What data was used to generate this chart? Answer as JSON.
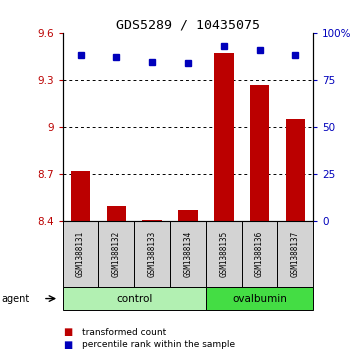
{
  "title": "GDS5289 / 10435075",
  "samples": [
    "GSM1388131",
    "GSM1388132",
    "GSM1388133",
    "GSM1388134",
    "GSM1388135",
    "GSM1388136",
    "GSM1388137"
  ],
  "bar_values": [
    8.72,
    8.5,
    8.41,
    8.47,
    9.47,
    9.27,
    9.05
  ],
  "dot_values": [
    88,
    87,
    84.5,
    84,
    93,
    91,
    88
  ],
  "ylim_left": [
    8.4,
    9.6
  ],
  "ylim_right": [
    0,
    100
  ],
  "yticks_left": [
    8.4,
    8.7,
    9.0,
    9.3,
    9.6
  ],
  "ytick_labels_left": [
    "8.4",
    "8.7",
    "9",
    "9.3",
    "9.6"
  ],
  "yticks_right": [
    0,
    25,
    50,
    75,
    100
  ],
  "ytick_labels_right": [
    "0",
    "25",
    "50",
    "75",
    "100%"
  ],
  "bar_color": "#bb0000",
  "dot_color": "#0000bb",
  "bar_width": 0.55,
  "gridline_values": [
    8.7,
    9.0,
    9.3
  ],
  "legend_bar_label": "transformed count",
  "legend_dot_label": "percentile rank within the sample",
  "agent_label": "agent",
  "sample_box_color": "#d3d3d3",
  "group_green_light": "#b2f0b2",
  "group_green_dark": "#44dd44",
  "control_range": [
    0,
    3
  ],
  "ovalbumin_range": [
    4,
    6
  ]
}
